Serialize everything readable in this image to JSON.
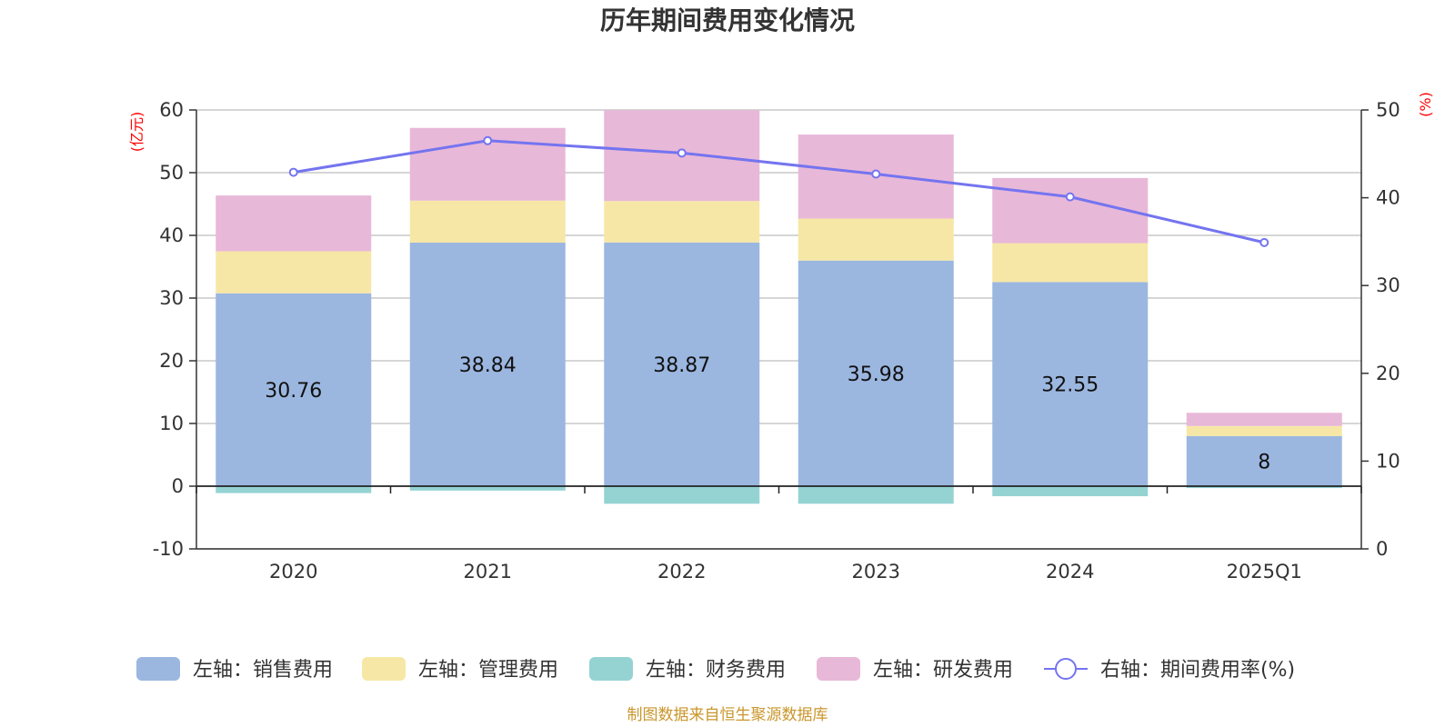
{
  "chart_data": {
    "type": "bar",
    "title": "历年期间费用变化情况",
    "categories": [
      "2020",
      "2021",
      "2022",
      "2023",
      "2024",
      "2025Q1"
    ],
    "left_axis": {
      "unit": "(亿元)",
      "ylim": [
        -10,
        60
      ],
      "ticks": [
        "-10",
        "0",
        "10",
        "20",
        "30",
        "40",
        "50",
        "60"
      ]
    },
    "right_axis": {
      "unit": "(%)",
      "ylim": [
        0,
        50
      ],
      "ticks": [
        "0",
        "10",
        "20",
        "30",
        "40",
        "50"
      ]
    },
    "series": [
      {
        "name": "左轴：销售费用",
        "axis": "left",
        "stack": true,
        "color": "#9bb7e0",
        "values": [
          30.76,
          38.84,
          38.87,
          35.98,
          32.55,
          8
        ],
        "labels": [
          "30.76",
          "38.84",
          "38.87",
          "35.98",
          "32.55",
          "8"
        ]
      },
      {
        "name": "左轴：管理费用",
        "axis": "left",
        "stack": true,
        "color": "#f7e7a6",
        "values": [
          6.7,
          6.7,
          6.6,
          6.7,
          6.2,
          1.6
        ]
      },
      {
        "name": "左轴：财务费用",
        "axis": "left",
        "stack": true,
        "color": "#95d3d3",
        "values": [
          -1.1,
          -0.7,
          -2.8,
          -2.8,
          -1.6,
          -0.3
        ]
      },
      {
        "name": "左轴：研发费用",
        "axis": "left",
        "stack": true,
        "color": "#e8b8d8",
        "values": [
          8.9,
          11.6,
          14.5,
          13.4,
          10.4,
          2.1
        ]
      },
      {
        "name": "右轴：期间费用率(%)",
        "axis": "right",
        "type": "line",
        "color": "#7474f0",
        "values": [
          42.9,
          46.5,
          45.1,
          42.7,
          40.1,
          34.9
        ]
      }
    ],
    "legend_position": "bottom",
    "grid": true
  },
  "footer": {
    "source": "制图数据来自恒生聚源数据库"
  }
}
